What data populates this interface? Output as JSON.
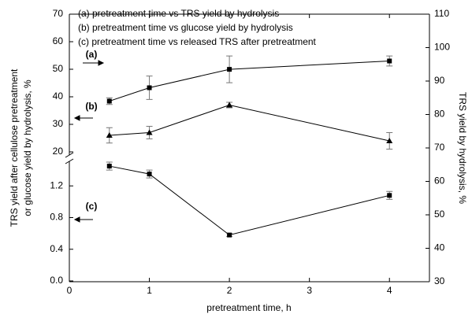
{
  "chart_data": {
    "type": "line",
    "xlabel": "pretreatment time, h",
    "ylabel": [
      "TRS yield after cellulose pretreatment",
      "or glucose yield by hydrolysis, %"
    ],
    "y2label": "TRS yield by hydrolysis, %",
    "xlim": [
      0,
      4.5
    ],
    "xticks": [
      0,
      1,
      2,
      3,
      4
    ],
    "ylim": [
      20,
      70
    ],
    "yticks": [
      20,
      30,
      40,
      50,
      60,
      70
    ],
    "ylim_lower": [
      0,
      1.55
    ],
    "yticks_lower": [
      {
        "value": 0,
        "label": "0.0"
      },
      0.4,
      0.8,
      1.2
    ],
    "y2lim": [
      30,
      110
    ],
    "y2ticks": [
      30,
      40,
      50,
      60,
      70,
      80,
      90,
      100,
      110
    ],
    "x": [
      0.5,
      1,
      2,
      4
    ],
    "series": [
      {
        "name": "(a)  pretreatment time vs TRS yield by hydrolysis",
        "label": "(a)",
        "axis": "y2",
        "marker": "square",
        "color": "#000000",
        "values": [
          84,
          88,
          93.5,
          96
        ],
        "errors": [
          1,
          3.5,
          4,
          1.5
        ]
      },
      {
        "name": "(b)  pretreatment time vs  glucose yield by hydrolysis",
        "label": "(b)",
        "axis": "y",
        "marker": "triangle",
        "color": "#000000",
        "values": [
          26,
          27,
          37,
          24
        ],
        "errors": [
          2.8,
          2.3,
          1,
          3
        ]
      },
      {
        "name": "(c)  pretreatment time vs  released TRS after  pretreatment",
        "label": "(c)",
        "axis": "y_lower",
        "marker": "square",
        "color": "#000000",
        "values": [
          1.45,
          1.35,
          0.58,
          1.08
        ],
        "errors": [
          0.05,
          0.05,
          0.02,
          0.05
        ]
      }
    ]
  }
}
